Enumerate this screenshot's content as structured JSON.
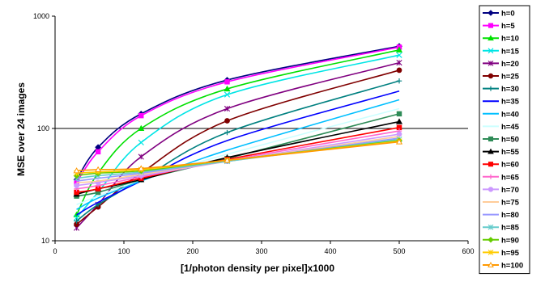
{
  "chart_data": {
    "type": "line",
    "title": "",
    "xlabel": "[1/photon density per pixel]x1000",
    "ylabel": "MSE over 24 images",
    "xlim": [
      0,
      600
    ],
    "ylim": [
      10,
      1000
    ],
    "yscale": "log",
    "x_ticks": [
      "0",
      "100",
      "200",
      "300",
      "400",
      "500",
      "600"
    ],
    "y_ticks": [
      "10",
      "100",
      "1000"
    ],
    "grid": "horizontal major at 100",
    "legend_position": "right",
    "x": [
      31.25,
      62.5,
      125,
      250,
      500
    ],
    "series": [
      {
        "name": "h=0",
        "color": "#000080",
        "marker": "diamond",
        "values": [
          35,
          68,
          135,
          270,
          540
        ]
      },
      {
        "name": "h=5",
        "color": "#ff00ff",
        "marker": "square",
        "values": [
          33,
          62,
          130,
          260,
          530
        ]
      },
      {
        "name": "h=10",
        "color": "#00e000",
        "marker": "triangle",
        "values": [
          17,
          40,
          100,
          225,
          500
        ]
      },
      {
        "name": "h=15",
        "color": "#00e5e5",
        "marker": "x",
        "values": [
          16,
          27,
          75,
          200,
          450
        ]
      },
      {
        "name": "h=20",
        "color": "#800080",
        "marker": "star",
        "values": [
          13,
          21,
          56,
          150,
          385
        ]
      },
      {
        "name": "h=25",
        "color": "#800000",
        "marker": "circle",
        "values": [
          14,
          20,
          40,
          117,
          330
        ]
      },
      {
        "name": "h=30",
        "color": "#008080",
        "marker": "plus",
        "values": [
          15,
          21,
          35,
          92,
          265
        ]
      },
      {
        "name": "h=35",
        "color": "#0000ff",
        "marker": "none",
        "values": [
          17,
          22,
          34,
          78,
          215
        ]
      },
      {
        "name": "h=40",
        "color": "#00bfff",
        "marker": "none",
        "values": [
          19,
          24,
          34,
          64,
          180
        ]
      },
      {
        "name": "h=45",
        "color": "#ccffff",
        "marker": "none",
        "values": [
          21,
          25,
          35,
          59,
          150
        ]
      },
      {
        "name": "h=50",
        "color": "#2e8b57",
        "marker": "square",
        "values": [
          25,
          27,
          35,
          54,
          135
        ]
      },
      {
        "name": "h=55",
        "color": "#000000",
        "marker": "triangle",
        "values": [
          26,
          29,
          35,
          55,
          115
        ]
      },
      {
        "name": "h=60",
        "color": "#ff0000",
        "marker": "square",
        "values": [
          27,
          29,
          36,
          53,
          102
        ]
      },
      {
        "name": "h=65",
        "color": "#ff66cc",
        "marker": "plus",
        "values": [
          29,
          31,
          37,
          52,
          95
        ]
      },
      {
        "name": "h=70",
        "color": "#cc99ff",
        "marker": "circle",
        "values": [
          31,
          33,
          38,
          51,
          89
        ]
      },
      {
        "name": "h=75",
        "color": "#ffcc99",
        "marker": "none",
        "values": [
          33,
          34,
          39,
          51,
          85
        ]
      },
      {
        "name": "h=80",
        "color": "#9999ff",
        "marker": "none",
        "values": [
          34,
          36,
          40,
          51,
          82
        ]
      },
      {
        "name": "h=85",
        "color": "#66cccc",
        "marker": "star",
        "values": [
          36,
          38,
          41,
          51,
          80
        ]
      },
      {
        "name": "h=90",
        "color": "#66cc00",
        "marker": "diamond",
        "values": [
          38,
          40,
          42,
          52,
          78
        ]
      },
      {
        "name": "h=95",
        "color": "#ffcc00",
        "marker": "star",
        "values": [
          40,
          41,
          43,
          52,
          77
        ]
      },
      {
        "name": "h=100",
        "color": "#ff9900",
        "marker": "triangle-open",
        "values": [
          42,
          43,
          44,
          52,
          76
        ]
      }
    ]
  }
}
